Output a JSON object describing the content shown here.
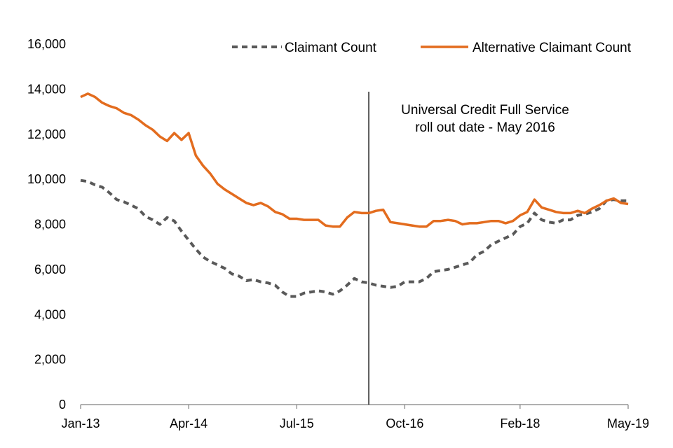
{
  "chart_data": {
    "type": "line",
    "title": "",
    "xlabel": "",
    "ylabel": "",
    "ylim": [
      0,
      16000
    ],
    "yticks": [
      0,
      2000,
      4000,
      6000,
      8000,
      10000,
      12000,
      14000,
      16000
    ],
    "ytick_labels": [
      "0",
      "2,000",
      "4,000",
      "6,000",
      "8,000",
      "10,000",
      "12,000",
      "14,000",
      "16,000"
    ],
    "xlim": [
      "2013-01",
      "2019-05"
    ],
    "xticks": [
      "2013-01",
      "2014-04",
      "2015-07",
      "2016-10",
      "2018-02",
      "2019-05"
    ],
    "xtick_labels": [
      "Jan-13",
      "Apr-14",
      "Jul-15",
      "Oct-16",
      "Feb-18",
      "May-19"
    ],
    "grid": false,
    "legend_position": "top-right",
    "annotation": {
      "x": "2016-05",
      "lines": [
        "Universal Credit Full Service",
        "roll out date - May 2016"
      ]
    },
    "series": [
      {
        "name": "Claimant Count",
        "color": "#595959",
        "style": "dashed",
        "x": [
          "2013-01",
          "2013-02",
          "2013-03",
          "2013-04",
          "2013-05",
          "2013-06",
          "2013-07",
          "2013-08",
          "2013-09",
          "2013-10",
          "2013-11",
          "2013-12",
          "2014-01",
          "2014-02",
          "2014-03",
          "2014-04",
          "2014-05",
          "2014-06",
          "2014-07",
          "2014-08",
          "2014-09",
          "2014-10",
          "2014-11",
          "2014-12",
          "2015-01",
          "2015-02",
          "2015-03",
          "2015-04",
          "2015-05",
          "2015-06",
          "2015-07",
          "2015-08",
          "2015-09",
          "2015-10",
          "2015-11",
          "2015-12",
          "2016-01",
          "2016-02",
          "2016-03",
          "2016-04",
          "2016-05",
          "2016-06",
          "2016-07",
          "2016-08",
          "2016-09",
          "2016-10",
          "2016-11",
          "2016-12",
          "2017-01",
          "2017-02",
          "2017-03",
          "2017-04",
          "2017-05",
          "2017-06",
          "2017-07",
          "2017-08",
          "2017-09",
          "2017-10",
          "2017-11",
          "2017-12",
          "2018-01",
          "2018-02",
          "2018-03",
          "2018-04",
          "2018-05",
          "2018-06",
          "2018-07",
          "2018-08",
          "2018-09",
          "2018-10",
          "2018-11",
          "2018-12",
          "2019-01",
          "2019-02",
          "2019-03",
          "2019-04",
          "2019-05"
        ],
        "values": [
          9950,
          9900,
          9750,
          9650,
          9400,
          9100,
          9000,
          8850,
          8700,
          8350,
          8200,
          8000,
          8300,
          8150,
          7700,
          7300,
          6900,
          6550,
          6350,
          6200,
          6050,
          5800,
          5700,
          5500,
          5550,
          5450,
          5400,
          5300,
          5000,
          4800,
          4800,
          4950,
          5000,
          5050,
          5000,
          4900,
          5050,
          5300,
          5600,
          5450,
          5400,
          5300,
          5250,
          5200,
          5250,
          5450,
          5450,
          5450,
          5600,
          5900,
          5950,
          6000,
          6100,
          6200,
          6300,
          6650,
          6800,
          7100,
          7250,
          7400,
          7550,
          7900,
          8050,
          8500,
          8200,
          8100,
          8050,
          8200,
          8200,
          8400,
          8450,
          8550,
          8700,
          9050,
          9100,
          9050,
          9050
        ]
      },
      {
        "name": "Alternative Claimant Count",
        "color": "#E36C1E",
        "style": "solid",
        "x": [
          "2013-01",
          "2013-02",
          "2013-03",
          "2013-04",
          "2013-05",
          "2013-06",
          "2013-07",
          "2013-08",
          "2013-09",
          "2013-10",
          "2013-11",
          "2013-12",
          "2014-01",
          "2014-02",
          "2014-03",
          "2014-04",
          "2014-05",
          "2014-06",
          "2014-07",
          "2014-08",
          "2014-09",
          "2014-10",
          "2014-11",
          "2014-12",
          "2015-01",
          "2015-02",
          "2015-03",
          "2015-04",
          "2015-05",
          "2015-06",
          "2015-07",
          "2015-08",
          "2015-09",
          "2015-10",
          "2015-11",
          "2015-12",
          "2016-01",
          "2016-02",
          "2016-03",
          "2016-04",
          "2016-05",
          "2016-06",
          "2016-07",
          "2016-08",
          "2016-09",
          "2016-10",
          "2016-11",
          "2016-12",
          "2017-01",
          "2017-02",
          "2017-03",
          "2017-04",
          "2017-05",
          "2017-06",
          "2017-07",
          "2017-08",
          "2017-09",
          "2017-10",
          "2017-11",
          "2017-12",
          "2018-01",
          "2018-02",
          "2018-03",
          "2018-04",
          "2018-05",
          "2018-06",
          "2018-07",
          "2018-08",
          "2018-09",
          "2018-10",
          "2018-11",
          "2018-12",
          "2019-01",
          "2019-02",
          "2019-03",
          "2019-04",
          "2019-05"
        ],
        "values": [
          13650,
          13800,
          13650,
          13400,
          13250,
          13150,
          12950,
          12850,
          12650,
          12400,
          12200,
          11900,
          11700,
          12050,
          11750,
          12050,
          11050,
          10600,
          10250,
          9800,
          9550,
          9350,
          9150,
          8950,
          8850,
          8950,
          8800,
          8550,
          8450,
          8250,
          8250,
          8200,
          8200,
          8200,
          7950,
          7900,
          7900,
          8300,
          8550,
          8500,
          8500,
          8600,
          8650,
          8100,
          8050,
          8000,
          7950,
          7900,
          7900,
          8150,
          8150,
          8200,
          8150,
          8000,
          8050,
          8050,
          8100,
          8150,
          8150,
          8050,
          8150,
          8400,
          8550,
          9100,
          8750,
          8650,
          8550,
          8500,
          8500,
          8600,
          8500,
          8700,
          8850,
          9050,
          9150,
          8950,
          8900
        ]
      }
    ]
  }
}
